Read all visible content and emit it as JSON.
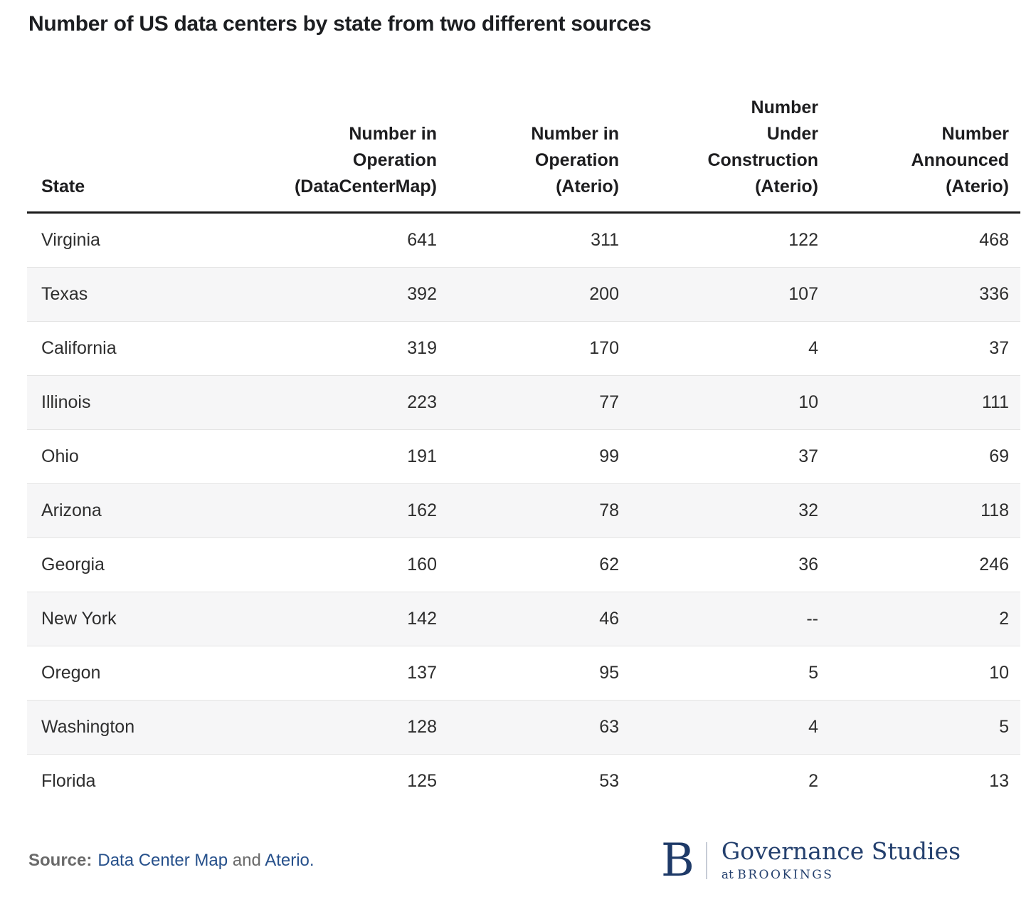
{
  "title": "Number of US data centers by state from two different sources",
  "chart_data": {
    "type": "table",
    "title": "Number of US data centers by state from two different sources",
    "columns": [
      {
        "id": "state",
        "label": "State",
        "align": "left"
      },
      {
        "id": "in-operation-datacentermap",
        "label": "Number in\nOperation\n(DataCenterMap)",
        "align": "right"
      },
      {
        "id": "in-operation-aterio",
        "label": "Number in\nOperation\n(Aterio)",
        "align": "right"
      },
      {
        "id": "under-construction-aterio",
        "label": "Number\nUnder\nConstruction\n(Aterio)",
        "align": "right"
      },
      {
        "id": "announced-aterio",
        "label": "Number\nAnnounced\n(Aterio)",
        "align": "right"
      }
    ],
    "rows": [
      {
        "state": "Virginia",
        "values": [
          "641",
          "311",
          "122",
          "468"
        ]
      },
      {
        "state": "Texas",
        "values": [
          "392",
          "200",
          "107",
          "336"
        ]
      },
      {
        "state": "California",
        "values": [
          "319",
          "170",
          "4",
          "37"
        ]
      },
      {
        "state": "Illinois",
        "values": [
          "223",
          "77",
          "10",
          "111"
        ]
      },
      {
        "state": "Ohio",
        "values": [
          "191",
          "99",
          "37",
          "69"
        ]
      },
      {
        "state": "Arizona",
        "values": [
          "162",
          "78",
          "32",
          "118"
        ]
      },
      {
        "state": "Georgia",
        "values": [
          "160",
          "62",
          "36",
          "246"
        ]
      },
      {
        "state": "New York",
        "values": [
          "142",
          "46",
          "--",
          "2"
        ]
      },
      {
        "state": "Oregon",
        "values": [
          "137",
          "95",
          "5",
          "10"
        ]
      },
      {
        "state": "Washington",
        "values": [
          "128",
          "63",
          "4",
          "5"
        ]
      },
      {
        "state": "Florida",
        "values": [
          "125",
          "53",
          "2",
          "13"
        ]
      }
    ]
  },
  "footer": {
    "source_label": "Source:",
    "parts": [
      {
        "text": "Data Center Map",
        "link": true
      },
      {
        "text": " and ",
        "link": false
      },
      {
        "text": "Aterio",
        "link": true
      },
      {
        "text": ".",
        "link": true
      }
    ]
  },
  "logo": {
    "letter": "B",
    "line1": "Governance Studies",
    "line2_prefix": "at ",
    "line2": "BROOKINGS"
  },
  "colors": {
    "title_text": "#1c1e21",
    "cell_text": "#2e2e2e",
    "alt_row_bg": "#f6f6f7",
    "header_rule": "#1a1a1a",
    "row_divider": "#e4e4e4",
    "link_blue": "#26508b",
    "logo_navy": "#24406e",
    "source_gray": "#6a6a6a"
  }
}
